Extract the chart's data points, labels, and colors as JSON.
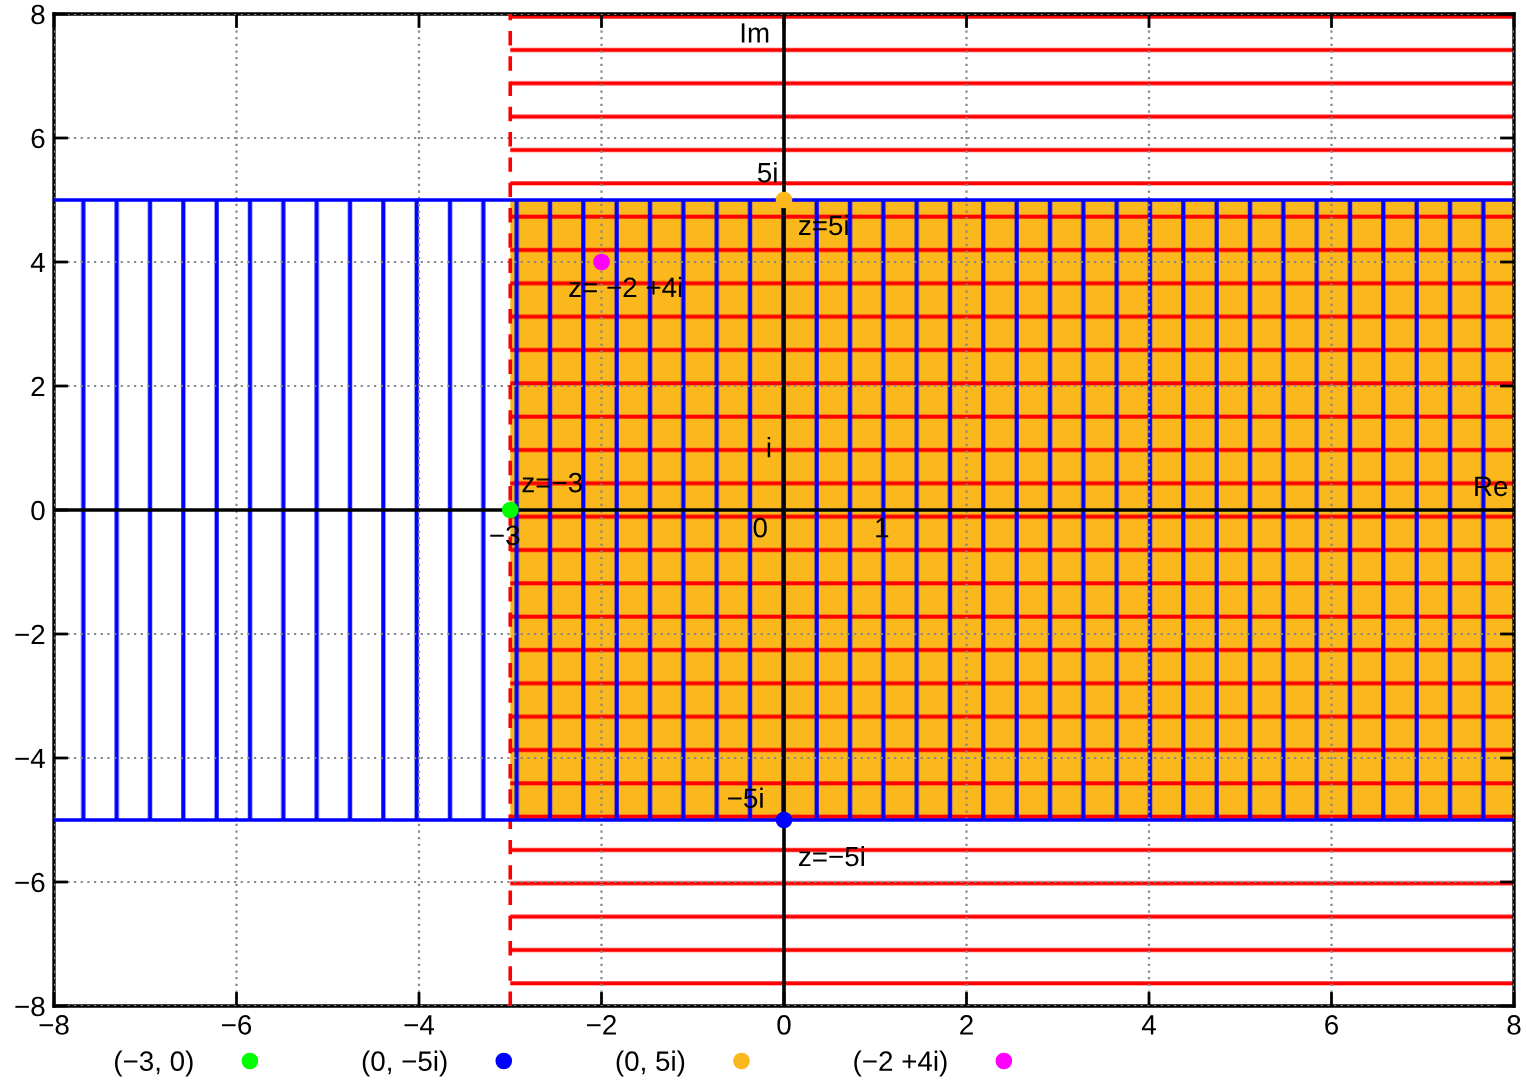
{
  "chart_data": {
    "type": "scatter",
    "xlim": [
      -8,
      8
    ],
    "ylim": [
      -8,
      8
    ],
    "xticks": [
      {
        "value": -8,
        "label": "−8"
      },
      {
        "value": -6,
        "label": "−6"
      },
      {
        "value": -4,
        "label": "−4"
      },
      {
        "value": -2,
        "label": "−2"
      },
      0,
      2,
      4,
      6,
      8
    ],
    "yticks": [
      {
        "value": -8,
        "label": "−8"
      },
      {
        "value": -6,
        "label": "−6"
      },
      {
        "value": -4,
        "label": "−4"
      },
      {
        "value": -2,
        "label": "−2"
      },
      0,
      2,
      4,
      6,
      8
    ],
    "grid": true,
    "legend": "bottom",
    "marker": "circle",
    "series": [
      {
        "type": "area",
        "marker": "none",
        "color": "#fbb81c",
        "x": [
          -3,
          8
        ],
        "values": [
          5,
          5
        ]
      },
      {
        "type": "area",
        "marker": "none",
        "color": "#fbb81c",
        "x": [
          -3,
          8
        ],
        "values": [
          -5,
          -5
        ]
      },
      {
        "name": "(−3, 0)",
        "color": "#00ff00",
        "x": [
          -3
        ],
        "values": [
          0
        ]
      },
      {
        "name": "(0, −5i)",
        "color": "#0000ff",
        "x": [
          0
        ],
        "values": [
          -5
        ]
      },
      {
        "name": "(0, 5i)",
        "color": "#fbb81c",
        "x": [
          0
        ],
        "values": [
          5
        ]
      },
      {
        "name": "(−2 +4i)",
        "color": "#ff00ff",
        "x": [
          -2
        ],
        "values": [
          4
        ]
      }
    ],
    "bands": [
      {
        "axis": "x",
        "from": -3,
        "to": 8,
        "color": "#ff0000"
      },
      {
        "axis": "y",
        "from": -5,
        "to": 5,
        "color": "#0000ff"
      }
    ],
    "ref_lines": [
      {
        "axis": "x",
        "value": -3,
        "color": "#ff0000",
        "line_style": "dashed"
      },
      {
        "axis": "y",
        "value": 5,
        "color": "#0000ff",
        "line_style": "solid"
      },
      {
        "axis": "y",
        "value": -5,
        "color": "#0000ff",
        "line_style": "solid"
      },
      {
        "axis": "x",
        "value": 0,
        "label": "Im",
        "color": "#000000",
        "line_style": "solid"
      },
      {
        "axis": "y",
        "value": 0,
        "label": "Re",
        "color": "#000000",
        "line_style": "solid"
      }
    ],
    "annotations": [
      {
        "text": "5i",
        "x": 0,
        "y": 5
      },
      {
        "text": "z=5i",
        "x": 0,
        "y": 5
      },
      {
        "text": "z= −2 +4i",
        "x": -2,
        "y": 4
      },
      "i",
      {
        "text": "z=−3",
        "x": -3,
        "y": 0
      },
      {
        "text": "−3",
        "x": -3,
        "y": 0
      },
      "0",
      "1",
      {
        "text": "−5i",
        "x": 0,
        "y": -5
      },
      {
        "text": "z=−5i",
        "x": 0,
        "y": -5
      }
    ]
  }
}
